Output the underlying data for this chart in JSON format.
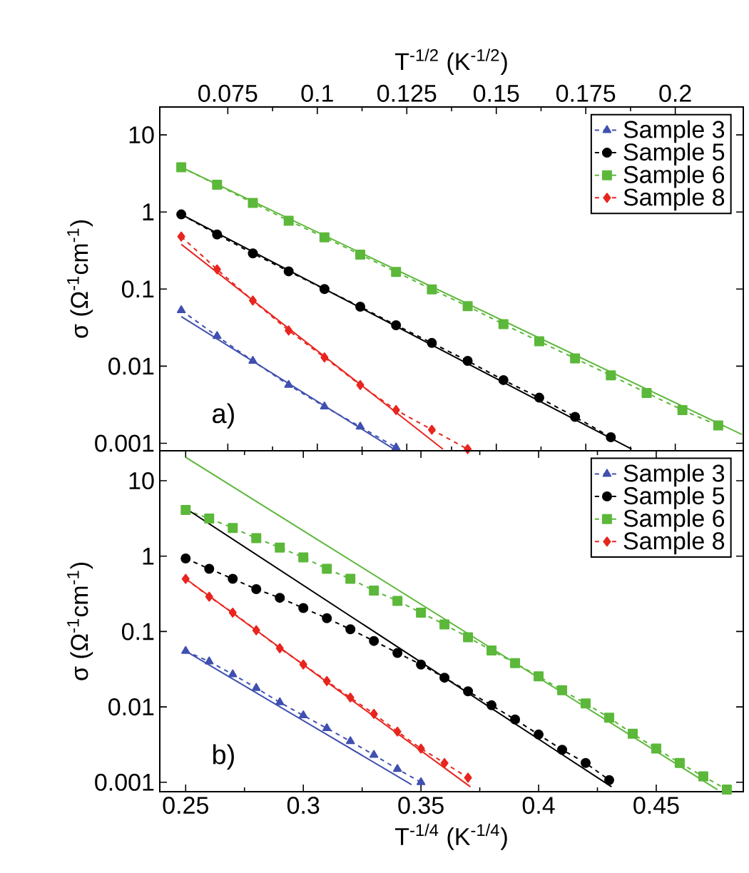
{
  "chart_data": [
    {
      "type": "line",
      "xlabel": "T$^{-1/2}$ (K$^{-1/2}$)",
      "ylabel": "σ (Ω$^{-1}$cm$^{-1}$)",
      "log": "y",
      "xlim": [
        0.056,
        0.219
      ],
      "ylim": [
        0.0008,
        23
      ],
      "xticks": [
        0.075,
        0.1,
        0.125,
        0.15,
        0.175,
        0.2
      ],
      "yticks": [
        0.001,
        0.01,
        0.1,
        1,
        10
      ],
      "legend": "top right",
      "grid": false,
      "annotations": [
        "a)"
      ],
      "series": [
        {
          "name": "Sample 3",
          "color": "#4050b0",
          "marker": "triangle",
          "line_style": "dashed",
          "x": [
            0.062,
            0.072,
            0.082,
            0.092,
            0.102,
            0.112,
            0.122
          ],
          "values": [
            0.053,
            0.0245,
            0.0117,
            0.0057,
            0.003,
            0.00164,
            0.00088
          ]
        },
        {
          "name": "Sample 5",
          "color": "#000000",
          "marker": "circle",
          "line_style": "dashed",
          "x": [
            0.062,
            0.072,
            0.082,
            0.092,
            0.102,
            0.112,
            0.122,
            0.132,
            0.142,
            0.152,
            0.162,
            0.172,
            0.182
          ],
          "values": [
            0.93,
            0.51,
            0.29,
            0.17,
            0.1,
            0.059,
            0.034,
            0.02,
            0.0117,
            0.0066,
            0.0039,
            0.0022,
            0.0012
          ]
        },
        {
          "name": "Sample 6",
          "color": "#5cb83a",
          "marker": "square",
          "line_style": "dashed",
          "x": [
            0.062,
            0.072,
            0.082,
            0.092,
            0.102,
            0.112,
            0.122,
            0.132,
            0.142,
            0.152,
            0.162,
            0.172,
            0.182,
            0.192,
            0.202,
            0.212
          ],
          "values": [
            3.8,
            2.25,
            1.31,
            0.77,
            0.47,
            0.28,
            0.167,
            0.099,
            0.06,
            0.035,
            0.021,
            0.0126,
            0.0076,
            0.0045,
            0.0027,
            0.0017
          ]
        },
        {
          "name": "Sample 8",
          "color": "#e8251e",
          "marker": "diamond",
          "line_style": "dashed",
          "x": [
            0.062,
            0.072,
            0.082,
            0.092,
            0.102,
            0.112,
            0.122,
            0.132,
            0.142
          ],
          "values": [
            0.48,
            0.18,
            0.071,
            0.029,
            0.013,
            0.0057,
            0.0027,
            0.0015,
            0.00084
          ]
        },
        {
          "color": "#4050b0",
          "line_style": "solid",
          "x": [
            0.062,
            0.1214
          ],
          "values": [
            0.044,
            0.00084
          ]
        },
        {
          "color": "#000000",
          "line_style": "solid",
          "x": [
            0.062,
            0.1878
          ],
          "values": [
            0.93,
            0.00084
          ]
        },
        {
          "color": "#5cb83a",
          "line_style": "solid",
          "x": [
            0.062,
            0.2186
          ],
          "values": [
            3.8,
            0.0013
          ]
        },
        {
          "color": "#e8251e",
          "line_style": "solid",
          "x": [
            0.062,
            0.1351
          ],
          "values": [
            0.38,
            0.00084
          ]
        }
      ]
    },
    {
      "type": "line",
      "xlabel": "T$^{-1/4}$ (K$^{-1/4}$)",
      "ylabel": "σ (Ω$^{-1}$cm$^{-1}$)",
      "log": "y",
      "xlim": [
        0.239,
        0.487
      ],
      "ylim": [
        0.00075,
        25
      ],
      "xticks": [
        0.25,
        0.3,
        0.35,
        0.4,
        0.45
      ],
      "yticks": [
        0.001,
        0.01,
        0.1,
        1,
        10
      ],
      "legend": "top right",
      "grid": false,
      "annotations": [
        "b)"
      ],
      "series": [
        {
          "name": "Sample 3",
          "color": "#4050b0",
          "marker": "triangle",
          "line_style": "dashed",
          "x": [
            0.25,
            0.26,
            0.27,
            0.28,
            0.29,
            0.3,
            0.31,
            0.32,
            0.33,
            0.34,
            0.35
          ],
          "values": [
            0.055,
            0.04,
            0.027,
            0.0178,
            0.0115,
            0.0077,
            0.0052,
            0.0035,
            0.0023,
            0.0015,
            0.001
          ]
        },
        {
          "name": "Sample 5",
          "color": "#000000",
          "marker": "circle",
          "line_style": "dashed",
          "x": [
            0.25,
            0.26,
            0.27,
            0.28,
            0.29,
            0.3,
            0.31,
            0.32,
            0.33,
            0.34,
            0.35,
            0.36,
            0.37,
            0.38,
            0.39,
            0.4,
            0.41,
            0.42,
            0.43
          ],
          "values": [
            0.93,
            0.68,
            0.5,
            0.365,
            0.28,
            0.205,
            0.15,
            0.107,
            0.075,
            0.052,
            0.0365,
            0.0244,
            0.0161,
            0.0105,
            0.0068,
            0.0043,
            0.0027,
            0.0018,
            0.00107
          ]
        },
        {
          "name": "Sample 6",
          "color": "#5cb83a",
          "marker": "square",
          "line_style": "dashed",
          "x": [
            0.25,
            0.26,
            0.27,
            0.28,
            0.29,
            0.3,
            0.31,
            0.32,
            0.33,
            0.34,
            0.35,
            0.36,
            0.37,
            0.38,
            0.39,
            0.4,
            0.41,
            0.42,
            0.43,
            0.44,
            0.45,
            0.46,
            0.47,
            0.48
          ],
          "values": [
            4.1,
            3.16,
            2.37,
            1.73,
            1.3,
            0.96,
            0.68,
            0.5,
            0.35,
            0.255,
            0.178,
            0.124,
            0.084,
            0.056,
            0.038,
            0.0255,
            0.0166,
            0.0111,
            0.0072,
            0.0044,
            0.0028,
            0.0018,
            0.0012,
            0.0008
          ]
        },
        {
          "name": "Sample 8",
          "color": "#e8251e",
          "marker": "diamond",
          "line_style": "dashed",
          "x": [
            0.25,
            0.26,
            0.27,
            0.28,
            0.29,
            0.3,
            0.31,
            0.32,
            0.33,
            0.34,
            0.35,
            0.36,
            0.37
          ],
          "values": [
            0.5,
            0.29,
            0.178,
            0.104,
            0.06,
            0.0365,
            0.022,
            0.0133,
            0.0081,
            0.0047,
            0.0028,
            0.0018,
            0.00115
          ]
        },
        {
          "color": "#4050b0",
          "line_style": "solid",
          "x": [
            0.25,
            0.346
          ],
          "values": [
            0.055,
            0.00093
          ]
        },
        {
          "color": "#000000",
          "line_style": "solid",
          "x": [
            0.251,
            0.431
          ],
          "values": [
            4.1,
            0.00087
          ]
        },
        {
          "color": "#5cb83a",
          "line_style": "solid",
          "x": [
            0.25,
            0.476
          ],
          "values": [
            20.5,
            0.0008
          ]
        },
        {
          "color": "#e8251e",
          "line_style": "solid",
          "x": [
            0.25,
            0.371
          ],
          "values": [
            0.5,
            0.00087
          ]
        }
      ]
    }
  ]
}
